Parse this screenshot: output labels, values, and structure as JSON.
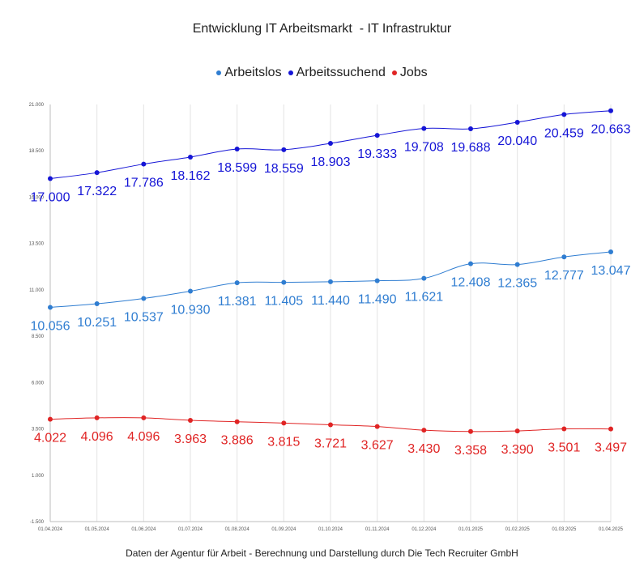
{
  "chart_data": {
    "type": "line",
    "title": "Entwicklung IT Arbeitsmarkt  - IT Infrastruktur",
    "footer": "Daten der Agentur für Arbeit - Berechnung und Darstellung durch Die Tech Recruiter GmbH",
    "legend_position": "top",
    "grid": true,
    "x": [
      "01.04.2024",
      "01.05.2024",
      "01.06.2024",
      "01.07.2024",
      "01.08.2024",
      "01.09.2024",
      "01.10.2024",
      "01.11.2024",
      "01.12.2024",
      "01.01.2025",
      "01.02.2025",
      "01.03.2025",
      "01.04.2025"
    ],
    "ylim": [
      -1500,
      21000
    ],
    "yticks": [
      {
        "value": 21000,
        "label": "21.000"
      },
      {
        "value": 18500,
        "label": "18.500"
      },
      {
        "value": 16000,
        "label": "16.000"
      },
      {
        "value": 13500,
        "label": "13.500"
      },
      {
        "value": 11000,
        "label": "11.000"
      },
      {
        "value": 8500,
        "label": "8.500"
      },
      {
        "value": 6000,
        "label": "6.000"
      },
      {
        "value": 3500,
        "label": "3.500"
      },
      {
        "value": 1000,
        "label": "1.000"
      },
      {
        "value": -1500,
        "label": "-1.500"
      }
    ],
    "series": [
      {
        "name": "Arbeitslos",
        "color": "#2f7dd1",
        "values": [
          10056,
          10251,
          10537,
          10930,
          11381,
          11405,
          11440,
          11490,
          11621,
          12408,
          12365,
          12777,
          13047
        ],
        "labels": [
          "10.056",
          "10.251",
          "10.537",
          "10.930",
          "11.381",
          "11.405",
          "11.440",
          "11.490",
          "11.621",
          "12.408",
          "12.365",
          "12.777",
          "13.047"
        ]
      },
      {
        "name": "Arbeitssuchend",
        "color": "#1515d6",
        "values": [
          17000,
          17322,
          17786,
          18162,
          18599,
          18559,
          18903,
          19333,
          19708,
          19688,
          20040,
          20459,
          20663
        ],
        "labels": [
          "17.000",
          "17.322",
          "17.786",
          "18.162",
          "18.599",
          "18.559",
          "18.903",
          "19.333",
          "19.708",
          "19.688",
          "20.040",
          "20.459",
          "20.663"
        ]
      },
      {
        "name": "Jobs",
        "color": "#e02424",
        "values": [
          4022,
          4096,
          4096,
          3963,
          3886,
          3815,
          3721,
          3627,
          3430,
          3358,
          3390,
          3501,
          3497
        ],
        "labels": [
          "4.022",
          "4.096",
          "4.096",
          "3.963",
          "3.886",
          "3.815",
          "3.721",
          "3.627",
          "3.430",
          "3.358",
          "3.390",
          "3.501",
          "3.497"
        ]
      }
    ]
  }
}
